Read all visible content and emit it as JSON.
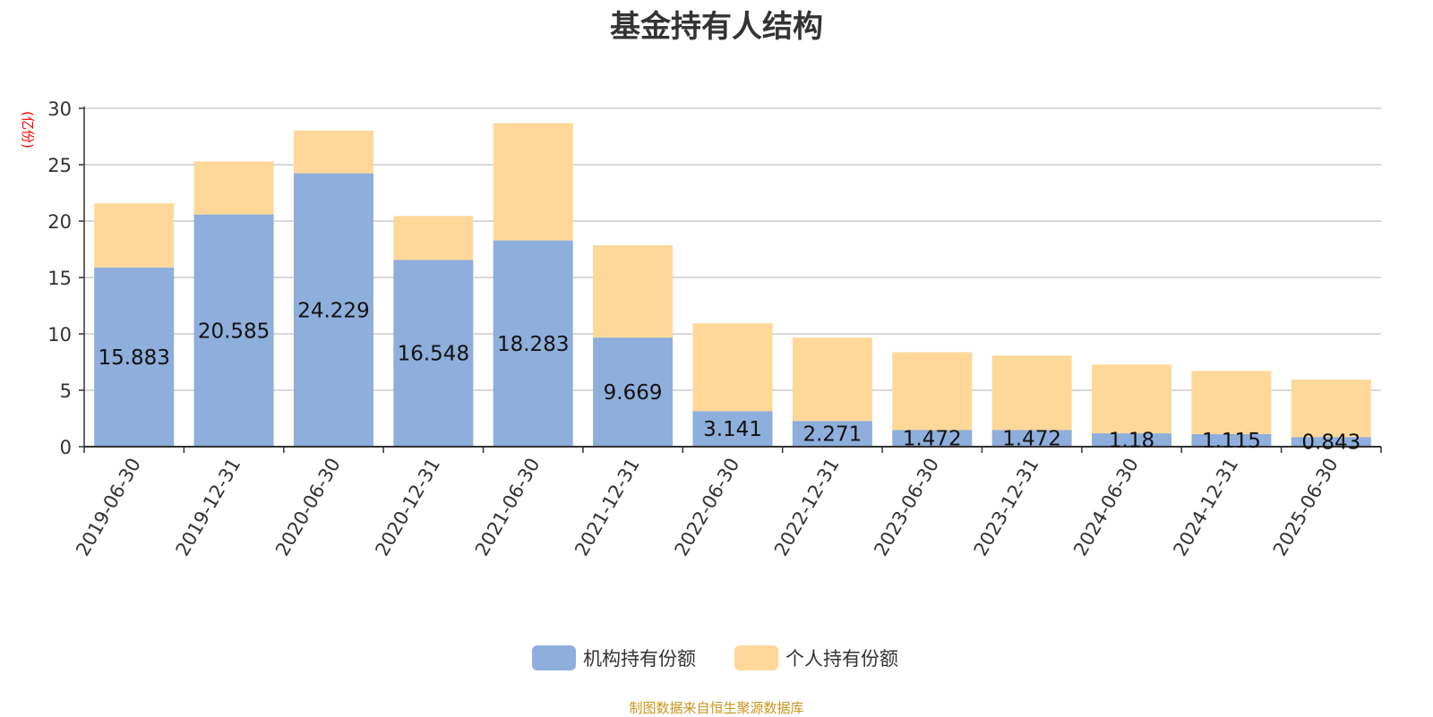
{
  "chart_data": {
    "type": "bar",
    "stacked": true,
    "title": "基金持有人结构",
    "ylabel": "(亿份)",
    "ylim": [
      0,
      30
    ],
    "yticks": [
      0,
      5,
      10,
      15,
      20,
      25,
      30
    ],
    "grid": true,
    "legend_position": "bottom",
    "categories": [
      "2019-06-30",
      "2019-12-31",
      "2020-06-30",
      "2020-12-31",
      "2021-06-30",
      "2021-12-31",
      "2022-06-30",
      "2022-12-31",
      "2023-06-30",
      "2023-12-31",
      "2024-06-30",
      "2024-12-31",
      "2025-06-30"
    ],
    "series": [
      {
        "name": "机构持有份额",
        "color": "#8eaedb",
        "values": [
          15.883,
          20.585,
          24.229,
          16.548,
          18.283,
          9.669,
          3.141,
          2.271,
          1.472,
          1.472,
          1.18,
          1.115,
          0.843
        ],
        "labels": [
          "15.883",
          "20.585",
          "24.229",
          "16.548",
          "18.283",
          "9.669",
          "3.141",
          "2.271",
          "1.472",
          "1.472",
          "1.18",
          "1.115",
          "0.843"
        ]
      },
      {
        "name": "个人持有份额",
        "color": "#ffd899",
        "values": [
          5.7,
          4.7,
          3.8,
          3.9,
          10.4,
          8.2,
          7.8,
          7.4,
          6.9,
          6.6,
          6.1,
          5.6,
          5.1
        ]
      }
    ]
  },
  "source_note": "制图数据来自恒生聚源数据库"
}
